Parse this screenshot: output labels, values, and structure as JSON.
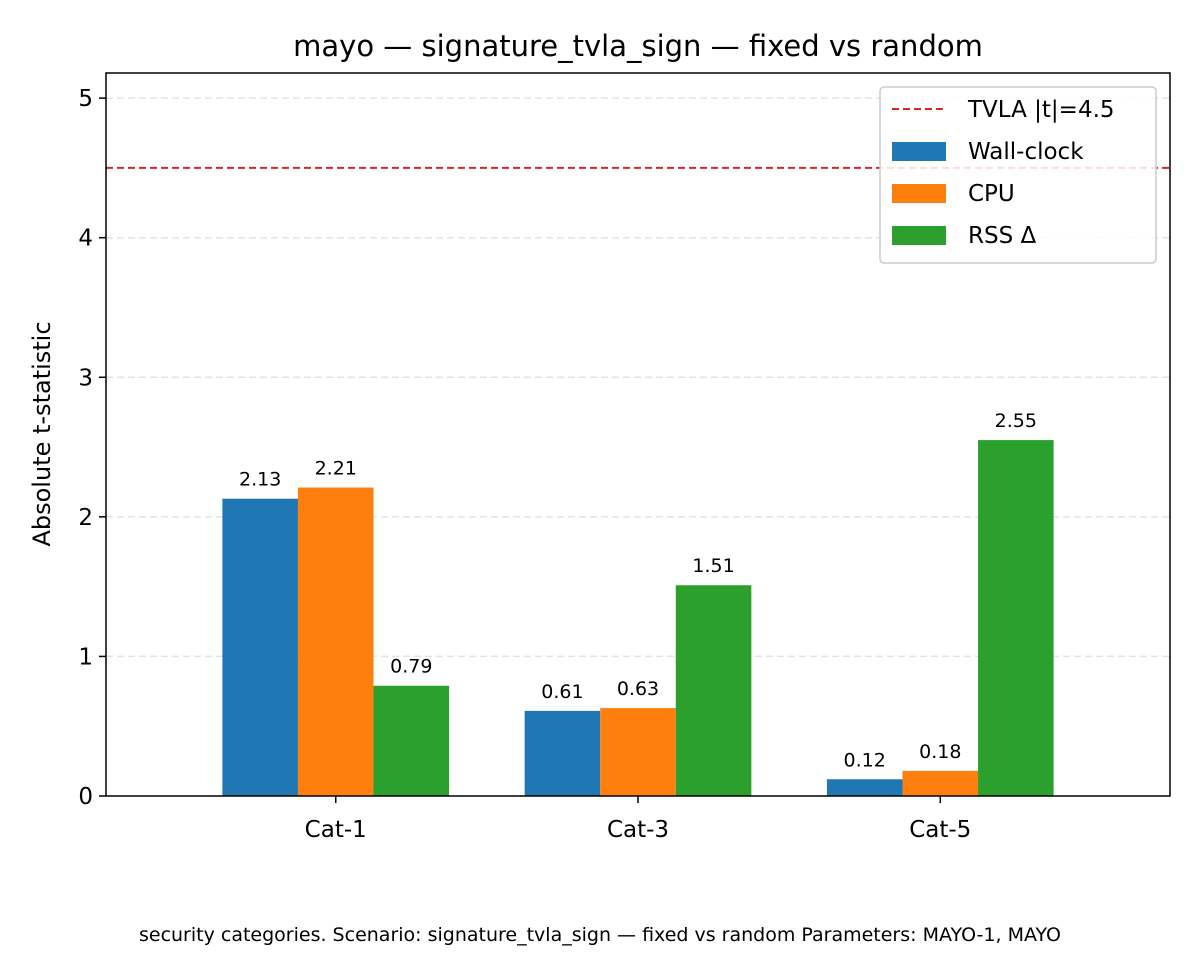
{
  "chart_data": {
    "type": "bar",
    "title": "mayo — signature_tvla_sign — fixed vs random",
    "ylabel": "Absolute t-statistic",
    "xlabel": "",
    "ylim": [
      0,
      5.18
    ],
    "yticks": [
      0,
      1,
      2,
      3,
      4,
      5
    ],
    "categories": [
      "Cat-1",
      "Cat-3",
      "Cat-5"
    ],
    "series": [
      {
        "name": "Wall-clock",
        "color": "#1f77b4",
        "values": [
          2.13,
          0.61,
          0.12
        ],
        "labels": [
          "2.13",
          "0.61",
          "0.12"
        ]
      },
      {
        "name": "CPU",
        "color": "#ff7f0e",
        "values": [
          2.21,
          0.63,
          0.18
        ],
        "labels": [
          "2.21",
          "0.63",
          "0.18"
        ]
      },
      {
        "name": "RSS Δ",
        "color": "#2ca02c",
        "values": [
          0.79,
          1.51,
          2.55
        ],
        "labels": [
          "0.79",
          "1.51",
          "2.55"
        ]
      }
    ],
    "threshold": {
      "label": "TVLA |t|=4.5",
      "value": 4.5,
      "color": "#d62728"
    },
    "grid": "y-dashed",
    "legend": "top-right"
  },
  "caption": "security categories. Scenario: signature_tvla_sign — fixed vs random Parameters: MAYO-1, MAYO"
}
